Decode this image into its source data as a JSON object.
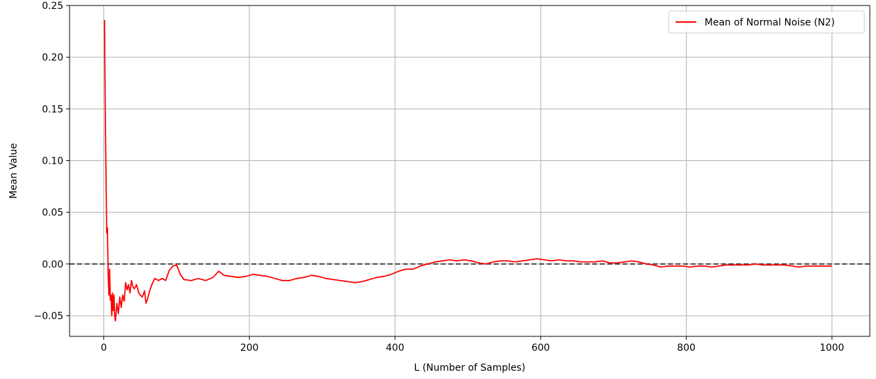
{
  "chart_data": {
    "type": "line",
    "title": "",
    "xlabel": "L (Number of Samples)",
    "ylabel": "Mean Value",
    "xlim": [
      -47,
      1052
    ],
    "ylim": [
      -0.07,
      0.25
    ],
    "x_ticks": [
      0,
      200,
      400,
      600,
      800,
      1000
    ],
    "x_tick_labels": [
      "0",
      "200",
      "400",
      "600",
      "800",
      "1000"
    ],
    "y_ticks": [
      -0.05,
      0.0,
      0.05,
      0.1,
      0.15,
      0.2,
      0.25
    ],
    "y_tick_labels": [
      "−0.05",
      "0.00",
      "0.05",
      "0.10",
      "0.15",
      "0.20",
      "0.25"
    ],
    "grid": true,
    "legend": {
      "position": "top-right",
      "entries": [
        "Mean of Normal Noise (N2)"
      ]
    },
    "reference_line": {
      "y": 0.0,
      "style": "dashed",
      "color": "#444444"
    },
    "series": [
      {
        "name": "Mean of Normal Noise (N2)",
        "color": "#ff0000",
        "points": [
          [
            1,
            0.236
          ],
          [
            2,
            0.15
          ],
          [
            3,
            0.09
          ],
          [
            4,
            0.03
          ],
          [
            5,
            0.035
          ],
          [
            6,
            -0.01
          ],
          [
            7,
            -0.03
          ],
          [
            8,
            -0.005
          ],
          [
            9,
            -0.035
          ],
          [
            10,
            -0.03
          ],
          [
            11,
            -0.05
          ],
          [
            12,
            -0.028
          ],
          [
            13,
            -0.045
          ],
          [
            14,
            -0.03
          ],
          [
            15,
            -0.05
          ],
          [
            16,
            -0.055
          ],
          [
            18,
            -0.038
          ],
          [
            20,
            -0.048
          ],
          [
            22,
            -0.032
          ],
          [
            24,
            -0.042
          ],
          [
            26,
            -0.03
          ],
          [
            28,
            -0.036
          ],
          [
            30,
            -0.018
          ],
          [
            32,
            -0.025
          ],
          [
            34,
            -0.02
          ],
          [
            36,
            -0.028
          ],
          [
            38,
            -0.016
          ],
          [
            40,
            -0.022
          ],
          [
            42,
            -0.024
          ],
          [
            45,
            -0.02
          ],
          [
            48,
            -0.028
          ],
          [
            50,
            -0.03
          ],
          [
            53,
            -0.032
          ],
          [
            56,
            -0.026
          ],
          [
            58,
            -0.038
          ],
          [
            60,
            -0.034
          ],
          [
            63,
            -0.026
          ],
          [
            66,
            -0.02
          ],
          [
            70,
            -0.014
          ],
          [
            75,
            -0.016
          ],
          [
            80,
            -0.014
          ],
          [
            85,
            -0.016
          ],
          [
            90,
            -0.006
          ],
          [
            95,
            -0.002
          ],
          [
            100,
            -0.001
          ],
          [
            105,
            -0.01
          ],
          [
            110,
            -0.015
          ],
          [
            120,
            -0.016
          ],
          [
            130,
            -0.014
          ],
          [
            140,
            -0.016
          ],
          [
            150,
            -0.013
          ],
          [
            158,
            -0.007
          ],
          [
            165,
            -0.011
          ],
          [
            175,
            -0.012
          ],
          [
            185,
            -0.013
          ],
          [
            195,
            -0.012
          ],
          [
            205,
            -0.01
          ],
          [
            215,
            -0.011
          ],
          [
            225,
            -0.012
          ],
          [
            235,
            -0.014
          ],
          [
            245,
            -0.016
          ],
          [
            255,
            -0.016
          ],
          [
            265,
            -0.014
          ],
          [
            275,
            -0.013
          ],
          [
            285,
            -0.011
          ],
          [
            295,
            -0.012
          ],
          [
            305,
            -0.014
          ],
          [
            315,
            -0.015
          ],
          [
            325,
            -0.016
          ],
          [
            335,
            -0.017
          ],
          [
            345,
            -0.018
          ],
          [
            355,
            -0.017
          ],
          [
            365,
            -0.015
          ],
          [
            375,
            -0.013
          ],
          [
            385,
            -0.012
          ],
          [
            395,
            -0.01
          ],
          [
            405,
            -0.007
          ],
          [
            415,
            -0.005
          ],
          [
            425,
            -0.005
          ],
          [
            435,
            -0.002
          ],
          [
            445,
            0.0
          ],
          [
            455,
            0.002
          ],
          [
            465,
            0.003
          ],
          [
            475,
            0.004
          ],
          [
            485,
            0.003
          ],
          [
            495,
            0.004
          ],
          [
            505,
            0.003
          ],
          [
            515,
            0.001
          ],
          [
            525,
            0.0
          ],
          [
            535,
            0.002
          ],
          [
            545,
            0.003
          ],
          [
            555,
            0.003
          ],
          [
            565,
            0.002
          ],
          [
            575,
            0.003
          ],
          [
            585,
            0.004
          ],
          [
            595,
            0.005
          ],
          [
            605,
            0.004
          ],
          [
            615,
            0.003
          ],
          [
            625,
            0.004
          ],
          [
            635,
            0.003
          ],
          [
            645,
            0.003
          ],
          [
            655,
            0.002
          ],
          [
            665,
            0.002
          ],
          [
            675,
            0.002
          ],
          [
            685,
            0.003
          ],
          [
            695,
            0.001
          ],
          [
            705,
            0.001
          ],
          [
            715,
            0.002
          ],
          [
            725,
            0.003
          ],
          [
            735,
            0.002
          ],
          [
            745,
            0.0
          ],
          [
            755,
            -0.001
          ],
          [
            765,
            -0.003
          ],
          [
            775,
            -0.002
          ],
          [
            785,
            -0.002
          ],
          [
            795,
            -0.002
          ],
          [
            805,
            -0.003
          ],
          [
            815,
            -0.002
          ],
          [
            825,
            -0.002
          ],
          [
            835,
            -0.003
          ],
          [
            845,
            -0.002
          ],
          [
            855,
            -0.001
          ],
          [
            865,
            -0.001
          ],
          [
            875,
            -0.001
          ],
          [
            885,
            -0.001
          ],
          [
            895,
            0.0
          ],
          [
            905,
            -0.001
          ],
          [
            915,
            -0.001
          ],
          [
            925,
            -0.001
          ],
          [
            935,
            -0.001
          ],
          [
            945,
            -0.002
          ],
          [
            955,
            -0.003
          ],
          [
            965,
            -0.002
          ],
          [
            975,
            -0.002
          ],
          [
            985,
            -0.002
          ],
          [
            995,
            -0.002
          ],
          [
            1000,
            -0.002
          ]
        ]
      }
    ]
  }
}
